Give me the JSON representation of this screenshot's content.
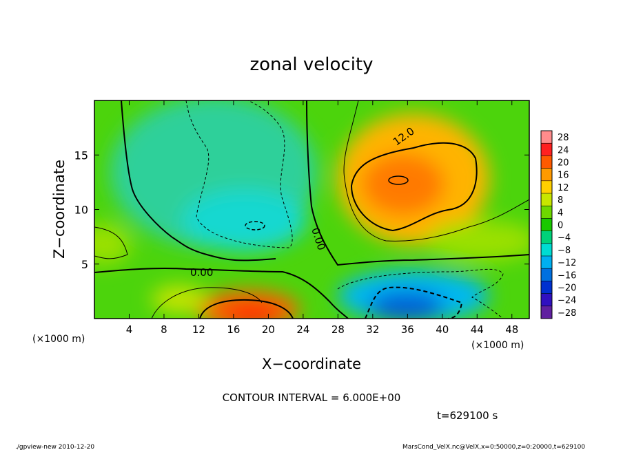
{
  "chart_data": {
    "type": "heatmap",
    "title": "zonal velocity",
    "xlabel": "X−coordinate",
    "ylabel": "Z−coordinate",
    "x_unit_left": "(×1000 m)",
    "x_unit_right": "(×1000 m)",
    "xlim": [
      0,
      50
    ],
    "ylim": [
      0,
      20
    ],
    "x_ticks": [
      "4",
      "8",
      "12",
      "16",
      "20",
      "24",
      "28",
      "32",
      "36",
      "40",
      "44",
      "48"
    ],
    "x_tick_values": [
      4,
      8,
      12,
      16,
      20,
      24,
      28,
      32,
      36,
      40,
      44,
      48
    ],
    "y_ticks": [
      "5",
      "10",
      "15"
    ],
    "y_tick_values": [
      5,
      10,
      15
    ],
    "colorbar_labels": [
      "28",
      "24",
      "20",
      "16",
      "12",
      "8",
      "4",
      "0",
      "−4",
      "−8",
      "−12",
      "−16",
      "−20",
      "−24",
      "−28"
    ],
    "colorbar_levels": [
      28,
      24,
      20,
      16,
      12,
      8,
      4,
      0,
      -4,
      -8,
      -12,
      -16,
      -20,
      -24,
      -28
    ],
    "colorbar_colors": [
      "#ff8c8c",
      "#ff2020",
      "#ff5a00",
      "#ff9a00",
      "#ffd000",
      "#c8e600",
      "#6ed800",
      "#19c800",
      "#00d27a",
      "#00dcd2",
      "#00b0f0",
      "#0070e0",
      "#0030d0",
      "#3010c0",
      "#6020a0"
    ],
    "contour_labels": [
      "12.0",
      "0.00",
      "0.00"
    ],
    "contour_interval": 6.0,
    "field_features": [
      {
        "x": 35,
        "z": 12.5,
        "value": 16
      },
      {
        "x": 18.5,
        "z": 0.6,
        "value": 18
      },
      {
        "x": 36,
        "z": 1.0,
        "value": -18
      },
      {
        "x": 18,
        "z": 8.5,
        "value": -10
      },
      {
        "x": 13,
        "z": 16,
        "value": -7
      },
      {
        "x": 0.5,
        "z": 7.5,
        "value": 5
      }
    ],
    "grid": false,
    "legend": "colorbar-right"
  },
  "annotations": {
    "contour_interval_text": "CONTOUR INTERVAL = 6.000E+00",
    "time_text": "t=629100  s",
    "footer_left": "./gpview-new  2010-12-20",
    "footer_right": "MarsCond_VelX.nc@VelX,x=0:50000,z=0:20000,t=629100"
  }
}
